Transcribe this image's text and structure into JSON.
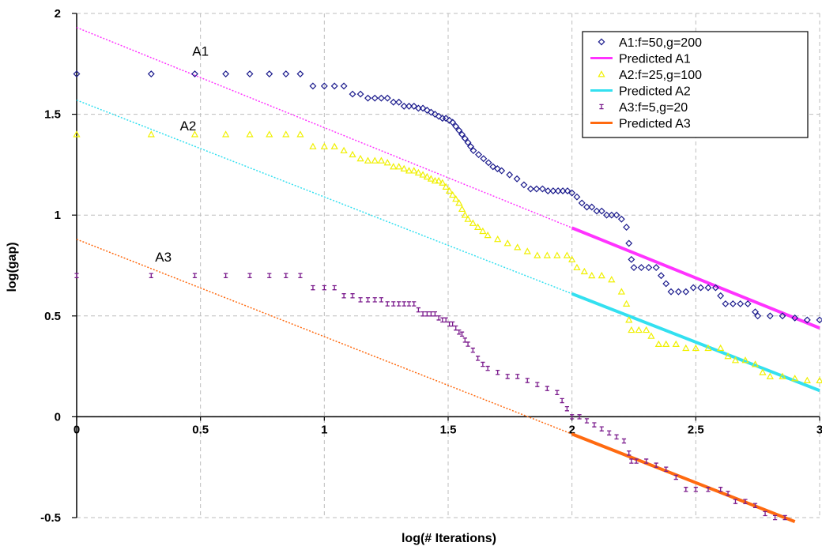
{
  "chart_data": {
    "type": "scatter",
    "xlabel": "log(# Iterations)",
    "ylabel": "log(gap)",
    "xlim": [
      0,
      3
    ],
    "ylim": [
      -0.5,
      2
    ],
    "x_ticks": [
      "0",
      "0.5",
      "1",
      "1.5",
      "2",
      "2.5",
      "3"
    ],
    "y_ticks": [
      "-0.5",
      "0",
      "0.5",
      "1",
      "1.5",
      "2"
    ],
    "x_tick_values": [
      0,
      0.5,
      1,
      1.5,
      2,
      2.5,
      3
    ],
    "y_tick_values": [
      -0.5,
      0,
      0.5,
      1,
      1.5,
      2
    ],
    "grid": "dashed",
    "legend_position": "top-right",
    "annotations": [
      {
        "text": "A1",
        "x": 0.5,
        "y": 1.79
      },
      {
        "text": "A2",
        "x": 0.45,
        "y": 1.42
      },
      {
        "text": "A3",
        "x": 0.35,
        "y": 0.77
      }
    ],
    "series": [
      {
        "name": "A1:f=50,g=200",
        "kind": "scatter",
        "marker": "diamond",
        "color": "#1a1a8c",
        "points": [
          [
            0,
            1.7
          ],
          [
            0.301,
            1.7
          ],
          [
            0.477,
            1.7
          ],
          [
            0.602,
            1.7
          ],
          [
            0.699,
            1.7
          ],
          [
            0.778,
            1.7
          ],
          [
            0.845,
            1.7
          ],
          [
            0.903,
            1.7
          ],
          [
            0.954,
            1.64
          ],
          [
            1,
            1.64
          ],
          [
            1.041,
            1.64
          ],
          [
            1.079,
            1.64
          ],
          [
            1.114,
            1.6
          ],
          [
            1.146,
            1.6
          ],
          [
            1.176,
            1.58
          ],
          [
            1.204,
            1.58
          ],
          [
            1.23,
            1.58
          ],
          [
            1.255,
            1.58
          ],
          [
            1.279,
            1.56
          ],
          [
            1.301,
            1.56
          ],
          [
            1.322,
            1.54
          ],
          [
            1.342,
            1.54
          ],
          [
            1.362,
            1.54
          ],
          [
            1.38,
            1.53
          ],
          [
            1.398,
            1.53
          ],
          [
            1.415,
            1.52
          ],
          [
            1.431,
            1.51
          ],
          [
            1.447,
            1.5
          ],
          [
            1.462,
            1.49
          ],
          [
            1.477,
            1.48
          ],
          [
            1.491,
            1.48
          ],
          [
            1.505,
            1.47
          ],
          [
            1.518,
            1.46
          ],
          [
            1.531,
            1.44
          ],
          [
            1.544,
            1.42
          ],
          [
            1.556,
            1.4
          ],
          [
            1.568,
            1.38
          ],
          [
            1.58,
            1.36
          ],
          [
            1.591,
            1.34
          ],
          [
            1.602,
            1.32
          ],
          [
            1.623,
            1.3
          ],
          [
            1.643,
            1.28
          ],
          [
            1.663,
            1.26
          ],
          [
            1.681,
            1.24
          ],
          [
            1.699,
            1.23
          ],
          [
            1.716,
            1.22
          ],
          [
            1.748,
            1.2
          ],
          [
            1.778,
            1.18
          ],
          [
            1.806,
            1.15
          ],
          [
            1.833,
            1.13
          ],
          [
            1.857,
            1.13
          ],
          [
            1.881,
            1.13
          ],
          [
            1.903,
            1.12
          ],
          [
            1.924,
            1.12
          ],
          [
            1.944,
            1.12
          ],
          [
            1.963,
            1.12
          ],
          [
            1.982,
            1.12
          ],
          [
            2.0,
            1.11
          ],
          [
            2.02,
            1.09
          ],
          [
            2.04,
            1.06
          ],
          [
            2.06,
            1.04
          ],
          [
            2.08,
            1.04
          ],
          [
            2.1,
            1.02
          ],
          [
            2.12,
            1.02
          ],
          [
            2.14,
            1.0
          ],
          [
            2.16,
            1.0
          ],
          [
            2.18,
            1.0
          ],
          [
            2.2,
            0.98
          ],
          [
            2.22,
            0.94
          ],
          [
            2.23,
            0.86
          ],
          [
            2.24,
            0.78
          ],
          [
            2.25,
            0.74
          ],
          [
            2.28,
            0.74
          ],
          [
            2.31,
            0.74
          ],
          [
            2.34,
            0.74
          ],
          [
            2.36,
            0.7
          ],
          [
            2.38,
            0.66
          ],
          [
            2.4,
            0.62
          ],
          [
            2.43,
            0.62
          ],
          [
            2.46,
            0.62
          ],
          [
            2.49,
            0.64
          ],
          [
            2.52,
            0.64
          ],
          [
            2.55,
            0.64
          ],
          [
            2.58,
            0.64
          ],
          [
            2.6,
            0.6
          ],
          [
            2.62,
            0.56
          ],
          [
            2.65,
            0.56
          ],
          [
            2.68,
            0.56
          ],
          [
            2.71,
            0.56
          ],
          [
            2.74,
            0.52
          ],
          [
            2.75,
            0.5
          ],
          [
            2.8,
            0.5
          ],
          [
            2.85,
            0.5
          ],
          [
            2.9,
            0.49
          ],
          [
            2.95,
            0.48
          ],
          [
            3.0,
            0.48
          ]
        ]
      },
      {
        "name": "Predicted A1",
        "kind": "line",
        "color": "#ff33ff",
        "points": [
          [
            0,
            1.93
          ],
          [
            3,
            0.44
          ]
        ]
      },
      {
        "name": "A2:f=25,g=100",
        "kind": "scatter",
        "marker": "triangle",
        "color": "#f0f000",
        "points": [
          [
            0,
            1.4
          ],
          [
            0.301,
            1.4
          ],
          [
            0.477,
            1.4
          ],
          [
            0.602,
            1.4
          ],
          [
            0.699,
            1.4
          ],
          [
            0.778,
            1.4
          ],
          [
            0.845,
            1.4
          ],
          [
            0.903,
            1.4
          ],
          [
            0.954,
            1.34
          ],
          [
            1,
            1.34
          ],
          [
            1.041,
            1.34
          ],
          [
            1.079,
            1.32
          ],
          [
            1.114,
            1.3
          ],
          [
            1.146,
            1.28
          ],
          [
            1.176,
            1.27
          ],
          [
            1.204,
            1.27
          ],
          [
            1.23,
            1.27
          ],
          [
            1.255,
            1.26
          ],
          [
            1.279,
            1.24
          ],
          [
            1.301,
            1.24
          ],
          [
            1.322,
            1.23
          ],
          [
            1.342,
            1.22
          ],
          [
            1.362,
            1.22
          ],
          [
            1.38,
            1.21
          ],
          [
            1.398,
            1.2
          ],
          [
            1.415,
            1.19
          ],
          [
            1.431,
            1.18
          ],
          [
            1.447,
            1.17
          ],
          [
            1.462,
            1.17
          ],
          [
            1.477,
            1.16
          ],
          [
            1.491,
            1.14
          ],
          [
            1.505,
            1.12
          ],
          [
            1.518,
            1.1
          ],
          [
            1.531,
            1.08
          ],
          [
            1.544,
            1.06
          ],
          [
            1.556,
            1.03
          ],
          [
            1.568,
            1.0
          ],
          [
            1.58,
            0.98
          ],
          [
            1.6,
            0.96
          ],
          [
            1.62,
            0.94
          ],
          [
            1.64,
            0.92
          ],
          [
            1.66,
            0.9
          ],
          [
            1.7,
            0.88
          ],
          [
            1.74,
            0.86
          ],
          [
            1.78,
            0.84
          ],
          [
            1.82,
            0.82
          ],
          [
            1.86,
            0.8
          ],
          [
            1.9,
            0.8
          ],
          [
            1.94,
            0.8
          ],
          [
            1.98,
            0.8
          ],
          [
            2.0,
            0.78
          ],
          [
            2.02,
            0.74
          ],
          [
            2.05,
            0.72
          ],
          [
            2.08,
            0.7
          ],
          [
            2.12,
            0.7
          ],
          [
            2.16,
            0.68
          ],
          [
            2.2,
            0.62
          ],
          [
            2.22,
            0.56
          ],
          [
            2.23,
            0.48
          ],
          [
            2.24,
            0.43
          ],
          [
            2.27,
            0.43
          ],
          [
            2.3,
            0.43
          ],
          [
            2.32,
            0.4
          ],
          [
            2.35,
            0.36
          ],
          [
            2.38,
            0.36
          ],
          [
            2.42,
            0.36
          ],
          [
            2.46,
            0.34
          ],
          [
            2.5,
            0.34
          ],
          [
            2.55,
            0.34
          ],
          [
            2.6,
            0.34
          ],
          [
            2.63,
            0.3
          ],
          [
            2.66,
            0.28
          ],
          [
            2.7,
            0.28
          ],
          [
            2.74,
            0.26
          ],
          [
            2.77,
            0.22
          ],
          [
            2.8,
            0.2
          ],
          [
            2.85,
            0.2
          ],
          [
            2.9,
            0.19
          ],
          [
            2.95,
            0.18
          ],
          [
            3.0,
            0.18
          ]
        ]
      },
      {
        "name": "Predicted A2",
        "kind": "line",
        "color": "#33e0f0",
        "points": [
          [
            0,
            1.57
          ],
          [
            3,
            0.13
          ]
        ]
      },
      {
        "name": "A3:f=5,g=20",
        "kind": "scatter",
        "marker": "cross",
        "color": "#7a1a8c",
        "points": [
          [
            0,
            0.7
          ],
          [
            0.301,
            0.7
          ],
          [
            0.477,
            0.7
          ],
          [
            0.602,
            0.7
          ],
          [
            0.699,
            0.7
          ],
          [
            0.778,
            0.7
          ],
          [
            0.845,
            0.7
          ],
          [
            0.903,
            0.7
          ],
          [
            0.954,
            0.64
          ],
          [
            1,
            0.64
          ],
          [
            1.041,
            0.64
          ],
          [
            1.079,
            0.6
          ],
          [
            1.114,
            0.6
          ],
          [
            1.146,
            0.58
          ],
          [
            1.176,
            0.58
          ],
          [
            1.204,
            0.58
          ],
          [
            1.23,
            0.58
          ],
          [
            1.255,
            0.56
          ],
          [
            1.279,
            0.56
          ],
          [
            1.301,
            0.56
          ],
          [
            1.322,
            0.56
          ],
          [
            1.342,
            0.56
          ],
          [
            1.362,
            0.56
          ],
          [
            1.38,
            0.53
          ],
          [
            1.398,
            0.51
          ],
          [
            1.415,
            0.51
          ],
          [
            1.431,
            0.51
          ],
          [
            1.447,
            0.51
          ],
          [
            1.462,
            0.49
          ],
          [
            1.477,
            0.48
          ],
          [
            1.491,
            0.48
          ],
          [
            1.505,
            0.46
          ],
          [
            1.518,
            0.46
          ],
          [
            1.531,
            0.44
          ],
          [
            1.544,
            0.42
          ],
          [
            1.556,
            0.41
          ],
          [
            1.568,
            0.38
          ],
          [
            1.58,
            0.36
          ],
          [
            1.6,
            0.33
          ],
          [
            1.62,
            0.29
          ],
          [
            1.64,
            0.26
          ],
          [
            1.66,
            0.24
          ],
          [
            1.7,
            0.22
          ],
          [
            1.74,
            0.2
          ],
          [
            1.78,
            0.2
          ],
          [
            1.82,
            0.18
          ],
          [
            1.86,
            0.16
          ],
          [
            1.9,
            0.14
          ],
          [
            1.94,
            0.12
          ],
          [
            1.96,
            0.08
          ],
          [
            1.98,
            0.04
          ],
          [
            2.0,
            0.0
          ],
          [
            2.03,
            0.0
          ],
          [
            2.06,
            -0.02
          ],
          [
            2.09,
            -0.04
          ],
          [
            2.12,
            -0.06
          ],
          [
            2.15,
            -0.08
          ],
          [
            2.18,
            -0.1
          ],
          [
            2.21,
            -0.12
          ],
          [
            2.23,
            -0.18
          ],
          [
            2.24,
            -0.22
          ],
          [
            2.26,
            -0.22
          ],
          [
            2.3,
            -0.22
          ],
          [
            2.34,
            -0.24
          ],
          [
            2.38,
            -0.26
          ],
          [
            2.42,
            -0.3
          ],
          [
            2.46,
            -0.36
          ],
          [
            2.5,
            -0.36
          ],
          [
            2.55,
            -0.36
          ],
          [
            2.6,
            -0.36
          ],
          [
            2.63,
            -0.38
          ],
          [
            2.66,
            -0.42
          ],
          [
            2.7,
            -0.42
          ],
          [
            2.74,
            -0.44
          ],
          [
            2.78,
            -0.48
          ],
          [
            2.82,
            -0.5
          ],
          [
            2.86,
            -0.5
          ]
        ]
      },
      {
        "name": "Predicted A3",
        "kind": "line",
        "color": "#ff6a10",
        "points": [
          [
            0,
            0.88
          ],
          [
            2.9,
            -0.52
          ]
        ]
      }
    ]
  }
}
